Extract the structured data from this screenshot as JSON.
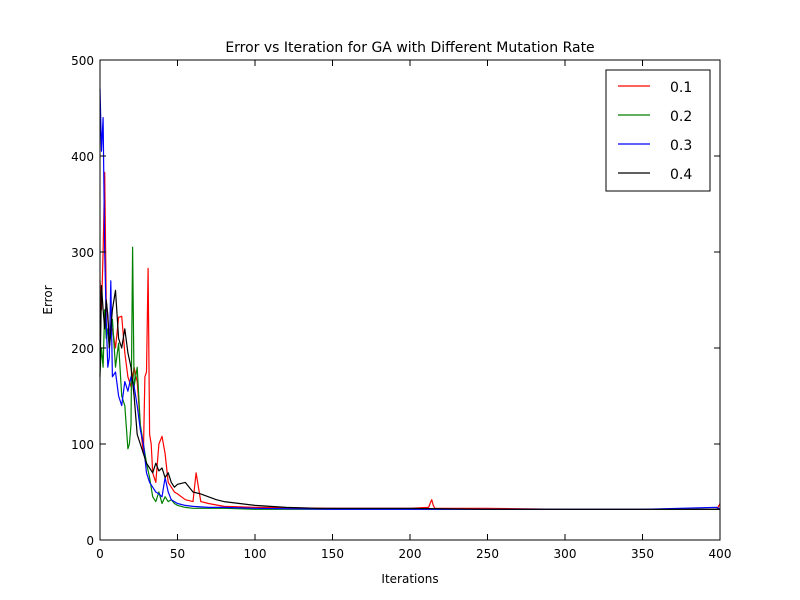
{
  "chart_data": {
    "type": "line",
    "title": "Error vs Iteration for GA with Different Mutation Rate",
    "xlabel": "Iterations",
    "ylabel": "Error",
    "xlim": [
      0,
      400
    ],
    "ylim": [
      0,
      500
    ],
    "xticks": [
      "0",
      "50",
      "100",
      "150",
      "200",
      "250",
      "300",
      "350",
      "400"
    ],
    "yticks": [
      "0",
      "100",
      "200",
      "300",
      "400",
      "500"
    ],
    "grid": false,
    "legend_position": "top-right",
    "series": [
      {
        "name": "0.1",
        "color": "#ff0000",
        "x": [
          0,
          1,
          2,
          3,
          4,
          5,
          6,
          8,
          10,
          12,
          14,
          16,
          18,
          20,
          22,
          24,
          26,
          28,
          29,
          30,
          31,
          32,
          33,
          34,
          36,
          38,
          40,
          42,
          44,
          46,
          48,
          50,
          55,
          60,
          62,
          65,
          70,
          80,
          100,
          150,
          200,
          212,
          213,
          214,
          215,
          216,
          220,
          250,
          300,
          350,
          398,
          400
        ],
        "y": [
          270,
          240,
          300,
          383,
          250,
          230,
          215,
          220,
          200,
          232,
          233,
          195,
          170,
          160,
          180,
          165,
          120,
          90,
          170,
          175,
          283,
          110,
          100,
          70,
          60,
          100,
          108,
          90,
          60,
          55,
          50,
          48,
          42,
          40,
          70,
          40,
          38,
          35,
          34,
          33,
          33,
          34,
          38,
          42,
          36,
          33,
          33,
          33,
          32,
          32,
          32,
          38
        ]
      },
      {
        "name": "0.2",
        "color": "#008000",
        "x": [
          0,
          1,
          2,
          3,
          4,
          5,
          6,
          8,
          10,
          12,
          14,
          16,
          18,
          19,
          20,
          21,
          22,
          24,
          26,
          28,
          30,
          32,
          34,
          36,
          38,
          40,
          42,
          44,
          46,
          48,
          50,
          55,
          60,
          70,
          80,
          100,
          150,
          200,
          250,
          300,
          350,
          400
        ],
        "y": [
          175,
          200,
          180,
          240,
          210,
          220,
          200,
          230,
          180,
          205,
          150,
          140,
          95,
          100,
          120,
          305,
          160,
          180,
          120,
          100,
          80,
          65,
          45,
          40,
          50,
          38,
          45,
          40,
          42,
          38,
          36,
          34,
          33,
          33,
          33,
          32,
          32,
          32,
          32,
          32,
          32,
          32
        ]
      },
      {
        "name": "0.3",
        "color": "#0000ff",
        "x": [
          0,
          1,
          2,
          3,
          4,
          5,
          6,
          7,
          8,
          10,
          12,
          14,
          16,
          18,
          20,
          22,
          24,
          26,
          28,
          30,
          32,
          34,
          36,
          38,
          40,
          42,
          44,
          46,
          48,
          50,
          55,
          60,
          70,
          80,
          100,
          150,
          200,
          250,
          300,
          350,
          398,
          400
        ],
        "y": [
          470,
          405,
          440,
          300,
          230,
          180,
          190,
          270,
          170,
          175,
          150,
          140,
          165,
          155,
          170,
          160,
          140,
          115,
          100,
          70,
          60,
          55,
          50,
          48,
          45,
          65,
          50,
          42,
          40,
          38,
          36,
          35,
          34,
          34,
          33,
          32,
          32,
          32,
          32,
          32,
          34,
          32
        ]
      },
      {
        "name": "0.4",
        "color": "#000000",
        "x": [
          0,
          1,
          2,
          3,
          4,
          5,
          6,
          8,
          10,
          12,
          14,
          16,
          18,
          20,
          22,
          24,
          26,
          28,
          30,
          32,
          34,
          36,
          38,
          40,
          42,
          44,
          46,
          48,
          50,
          55,
          60,
          65,
          70,
          75,
          80,
          90,
          100,
          110,
          120,
          140,
          160,
          180,
          200,
          250,
          300,
          350,
          400
        ],
        "y": [
          170,
          265,
          240,
          220,
          250,
          235,
          200,
          240,
          260,
          210,
          200,
          220,
          195,
          180,
          150,
          110,
          100,
          90,
          80,
          75,
          70,
          80,
          72,
          75,
          65,
          70,
          60,
          55,
          58,
          60,
          50,
          48,
          45,
          42,
          40,
          38,
          36,
          35,
          34,
          33,
          33,
          33,
          33,
          32,
          32,
          32,
          32
        ]
      }
    ]
  }
}
